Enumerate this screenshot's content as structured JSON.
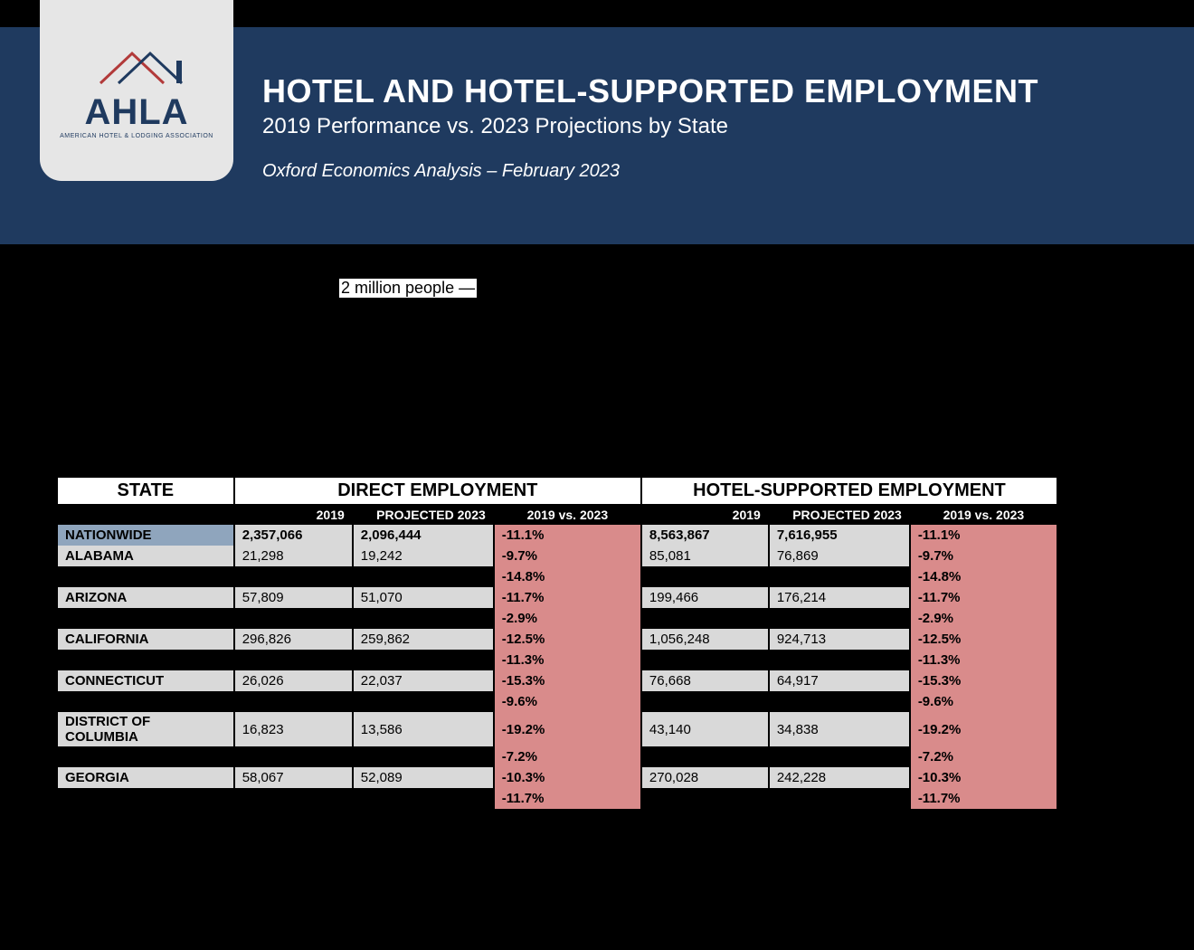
{
  "header": {
    "logo_text": "AHLA",
    "logo_sub": "AMERICAN HOTEL & LODGING ASSOCIATION",
    "title": "HOTEL AND HOTEL-SUPPORTED EMPLOYMENT",
    "subtitle": "2019 Performance vs. 2023 Projections by State",
    "source": "Oxford Economics Analysis – February 2023"
  },
  "body_fragment": "2 million people —",
  "table": {
    "group_headers": {
      "state": "STATE",
      "direct": "DIRECT EMPLOYMENT",
      "supported": "HOTEL-SUPPORTED EMPLOYMENT"
    },
    "sub_headers": {
      "y2019": "2019",
      "proj": "PROJECTED 2023",
      "vs": "2019 vs. 2023"
    },
    "col_widths": {
      "state": "195px",
      "val": "130px",
      "pct": "160px"
    },
    "colors": {
      "header_bg": "#ffffff",
      "subheader_bg": "#000000",
      "subheader_fg": "#ffffff",
      "nation_state_bg": "#8fa5bd",
      "cell_bg": "#d9d9d9",
      "pct_bg": "#d98b8b",
      "blank_bg": "#000000"
    },
    "rows": [
      {
        "type": "nation",
        "state": "NATIONWIDE",
        "d2019": "2,357,066",
        "dproj": "2,096,444",
        "dvs": "-11.1%",
        "s2019": "8,563,867",
        "sproj": "7,616,955",
        "svs": "-11.1%"
      },
      {
        "type": "normal",
        "state": "ALABAMA",
        "d2019": "21,298",
        "dproj": "19,242",
        "dvs": "-9.7%",
        "s2019": "85,081",
        "sproj": "76,869",
        "svs": "-9.7%"
      },
      {
        "type": "blank",
        "dvs": "-14.8%",
        "svs": "-14.8%"
      },
      {
        "type": "normal",
        "state": "ARIZONA",
        "d2019": "57,809",
        "dproj": "51,070",
        "dvs": "-11.7%",
        "s2019": "199,466",
        "sproj": "176,214",
        "svs": "-11.7%"
      },
      {
        "type": "blank",
        "dvs": "-2.9%",
        "svs": "-2.9%"
      },
      {
        "type": "normal",
        "state": "CALIFORNIA",
        "d2019": "296,826",
        "dproj": "259,862",
        "dvs": "-12.5%",
        "s2019": "1,056,248",
        "sproj": "924,713",
        "svs": "-12.5%"
      },
      {
        "type": "blank",
        "dvs": "-11.3%",
        "svs": "-11.3%"
      },
      {
        "type": "normal",
        "state": "CONNECTICUT",
        "d2019": "26,026",
        "dproj": "22,037",
        "dvs": "-15.3%",
        "s2019": "76,668",
        "sproj": "64,917",
        "svs": "-15.3%"
      },
      {
        "type": "blank",
        "dvs": "-9.6%",
        "svs": "-9.6%"
      },
      {
        "type": "normal",
        "state": "DISTRICT OF COLUMBIA",
        "d2019": "16,823",
        "dproj": "13,586",
        "dvs": "-19.2%",
        "s2019": "43,140",
        "sproj": "34,838",
        "svs": "-19.2%"
      },
      {
        "type": "blank",
        "dvs": "-7.2%",
        "svs": "-7.2%"
      },
      {
        "type": "normal",
        "state": "GEORGIA",
        "d2019": "58,067",
        "dproj": "52,089",
        "dvs": "-10.3%",
        "s2019": "270,028",
        "sproj": "242,228",
        "svs": "-10.3%"
      },
      {
        "type": "blank",
        "dvs": "-11.7%",
        "svs": "-11.7%"
      }
    ]
  }
}
